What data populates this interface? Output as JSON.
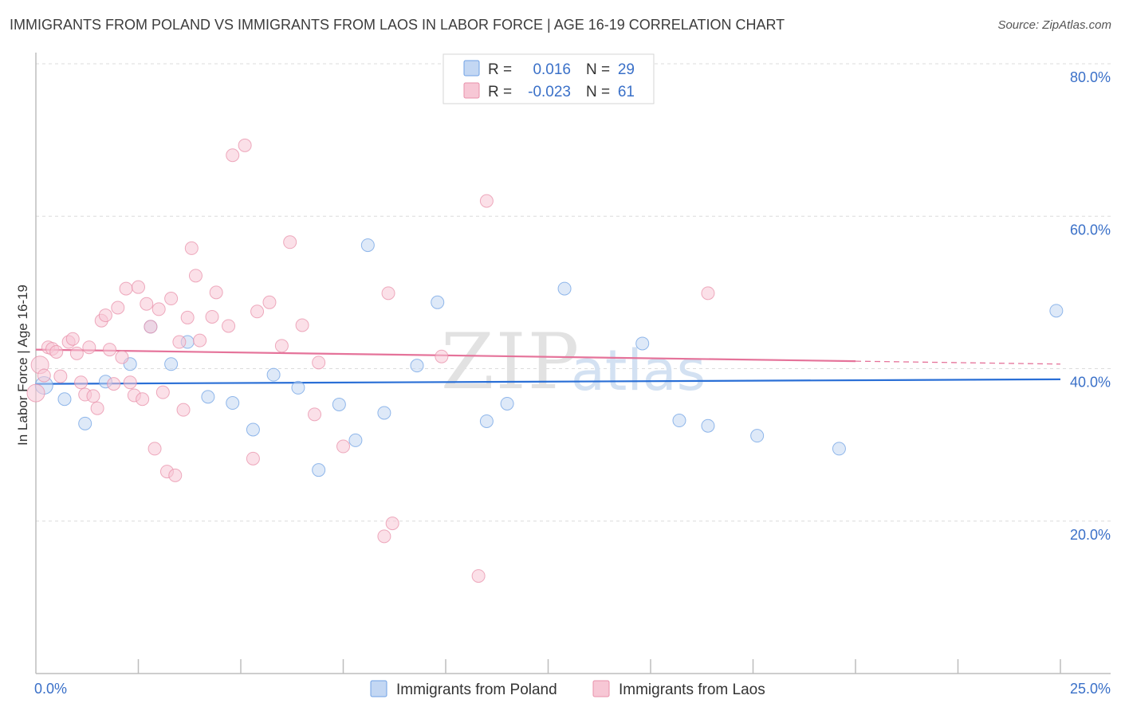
{
  "title": "IMMIGRANTS FROM POLAND VS IMMIGRANTS FROM LAOS IN LABOR FORCE | AGE 16-19 CORRELATION CHART",
  "source": "Source: ZipAtlas.com",
  "watermark": {
    "zip": "ZIP",
    "atlas": "atlas"
  },
  "chart_data": {
    "type": "scatter",
    "title": "IMMIGRANTS FROM POLAND VS IMMIGRANTS FROM LAOS IN LABOR FORCE | AGE 16-19 CORRELATION CHART",
    "xlabel": "",
    "ylabel": "In Labor Force | Age 16-19",
    "xlim": [
      0,
      25
    ],
    "ylim": [
      0,
      80
    ],
    "grid": true,
    "x_tick_labels": [
      "0.0%",
      "25.0%"
    ],
    "y_ticks": [
      20,
      40,
      60,
      80
    ],
    "y_tick_labels": [
      "20.0%",
      "40.0%",
      "60.0%",
      "80.0%"
    ],
    "legend_position": "top-center",
    "series": [
      {
        "name": "Immigrants from Poland",
        "color": "#6fa1e4",
        "fill": "#c3d7f3",
        "R": "0.016",
        "N": "29",
        "trend": {
          "x": [
            0,
            25
          ],
          "y": [
            38.0,
            38.6
          ],
          "dashed_from": null
        },
        "points": [
          [
            0.2,
            37.8
          ],
          [
            0.7,
            36.0
          ],
          [
            1.2,
            32.8
          ],
          [
            1.7,
            38.3
          ],
          [
            2.3,
            40.6
          ],
          [
            2.8,
            45.5
          ],
          [
            3.3,
            40.6
          ],
          [
            3.7,
            43.5
          ],
          [
            4.2,
            36.3
          ],
          [
            4.8,
            35.5
          ],
          [
            5.3,
            32.0
          ],
          [
            5.8,
            39.2
          ],
          [
            6.4,
            37.5
          ],
          [
            6.9,
            26.7
          ],
          [
            7.4,
            35.3
          ],
          [
            7.8,
            30.6
          ],
          [
            8.1,
            56.2
          ],
          [
            8.5,
            34.2
          ],
          [
            9.3,
            40.4
          ],
          [
            9.8,
            48.7
          ],
          [
            11.0,
            33.1
          ],
          [
            11.5,
            35.4
          ],
          [
            12.9,
            50.5
          ],
          [
            14.8,
            43.3
          ],
          [
            15.7,
            33.2
          ],
          [
            16.4,
            32.5
          ],
          [
            17.6,
            31.2
          ],
          [
            19.6,
            29.5
          ],
          [
            24.9,
            47.6
          ]
        ]
      },
      {
        "name": "Immigrants from Laos",
        "color": "#e890aa",
        "fill": "#f7c7d5",
        "R": "-0.023",
        "N": "61",
        "trend": {
          "x": [
            0,
            25
          ],
          "y": [
            42.5,
            40.6
          ],
          "dashed_from": 20
        },
        "points": [
          [
            0.0,
            36.8
          ],
          [
            0.1,
            40.5
          ],
          [
            0.2,
            39.1
          ],
          [
            0.3,
            42.8
          ],
          [
            0.4,
            42.6
          ],
          [
            0.5,
            42.2
          ],
          [
            0.6,
            39.0
          ],
          [
            0.8,
            43.5
          ],
          [
            0.9,
            43.9
          ],
          [
            1.0,
            42.0
          ],
          [
            1.1,
            38.2
          ],
          [
            1.2,
            36.6
          ],
          [
            1.3,
            42.8
          ],
          [
            1.4,
            36.4
          ],
          [
            1.5,
            34.8
          ],
          [
            1.6,
            46.3
          ],
          [
            1.7,
            47.0
          ],
          [
            1.8,
            42.5
          ],
          [
            1.9,
            38.0
          ],
          [
            2.0,
            48.0
          ],
          [
            2.1,
            41.5
          ],
          [
            2.2,
            50.5
          ],
          [
            2.3,
            38.2
          ],
          [
            2.4,
            36.5
          ],
          [
            2.5,
            50.7
          ],
          [
            2.6,
            36.0
          ],
          [
            2.7,
            48.5
          ],
          [
            2.8,
            45.5
          ],
          [
            2.9,
            29.5
          ],
          [
            3.0,
            47.8
          ],
          [
            3.1,
            36.9
          ],
          [
            3.2,
            26.5
          ],
          [
            3.3,
            49.2
          ],
          [
            3.4,
            26.0
          ],
          [
            3.5,
            43.5
          ],
          [
            3.6,
            34.6
          ],
          [
            3.7,
            46.7
          ],
          [
            3.8,
            55.8
          ],
          [
            3.9,
            52.2
          ],
          [
            4.0,
            43.7
          ],
          [
            4.3,
            46.8
          ],
          [
            4.4,
            50.0
          ],
          [
            4.7,
            45.6
          ],
          [
            4.8,
            68.0
          ],
          [
            5.1,
            69.3
          ],
          [
            5.3,
            28.2
          ],
          [
            5.4,
            47.5
          ],
          [
            5.7,
            48.7
          ],
          [
            6.0,
            43.0
          ],
          [
            6.2,
            56.6
          ],
          [
            6.5,
            45.7
          ],
          [
            6.8,
            34.0
          ],
          [
            6.9,
            40.8
          ],
          [
            7.5,
            29.8
          ],
          [
            8.5,
            18.0
          ],
          [
            8.6,
            49.9
          ],
          [
            8.7,
            19.7
          ],
          [
            9.9,
            41.6
          ],
          [
            10.8,
            12.8
          ],
          [
            11.0,
            62.0
          ],
          [
            16.4,
            49.9
          ]
        ]
      }
    ]
  }
}
